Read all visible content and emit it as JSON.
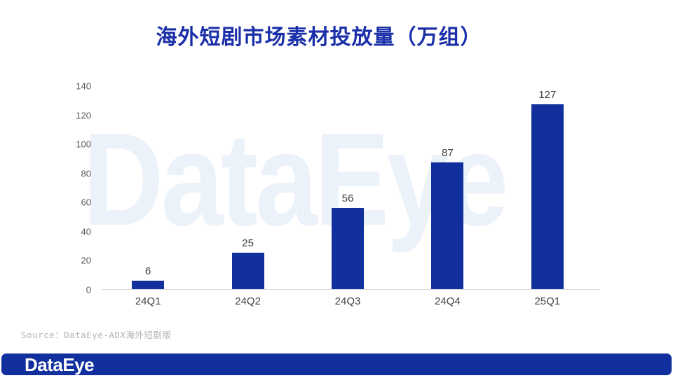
{
  "title": "海外短剧市场素材投放量（万组）",
  "watermark_text": "DataEye",
  "source_note": "Source：DataEye-ADX海外短剧版",
  "footer": {
    "logo": "DataEye"
  },
  "colors": {
    "bar": "#112F9D",
    "title": "#1A2FA8",
    "footer_bg": "#112F9D",
    "watermark": "#ECF2F9",
    "axis_line": "#D9D9D9",
    "y_label": "#595959",
    "x_label": "#444444",
    "data_label": "#3F3F3F"
  },
  "chart_data": {
    "type": "bar",
    "title": "海外短剧市场素材投放量（万组）",
    "categories": [
      "24Q1",
      "24Q2",
      "24Q3",
      "24Q4",
      "25Q1"
    ],
    "values": [
      6,
      25,
      56,
      87,
      127
    ],
    "xlabel": "",
    "ylabel": "",
    "ylim": [
      0,
      140
    ],
    "yticks": [
      0,
      20,
      40,
      60,
      80,
      100,
      120,
      140
    ],
    "grid": false,
    "legend": false,
    "data_labels": true
  }
}
